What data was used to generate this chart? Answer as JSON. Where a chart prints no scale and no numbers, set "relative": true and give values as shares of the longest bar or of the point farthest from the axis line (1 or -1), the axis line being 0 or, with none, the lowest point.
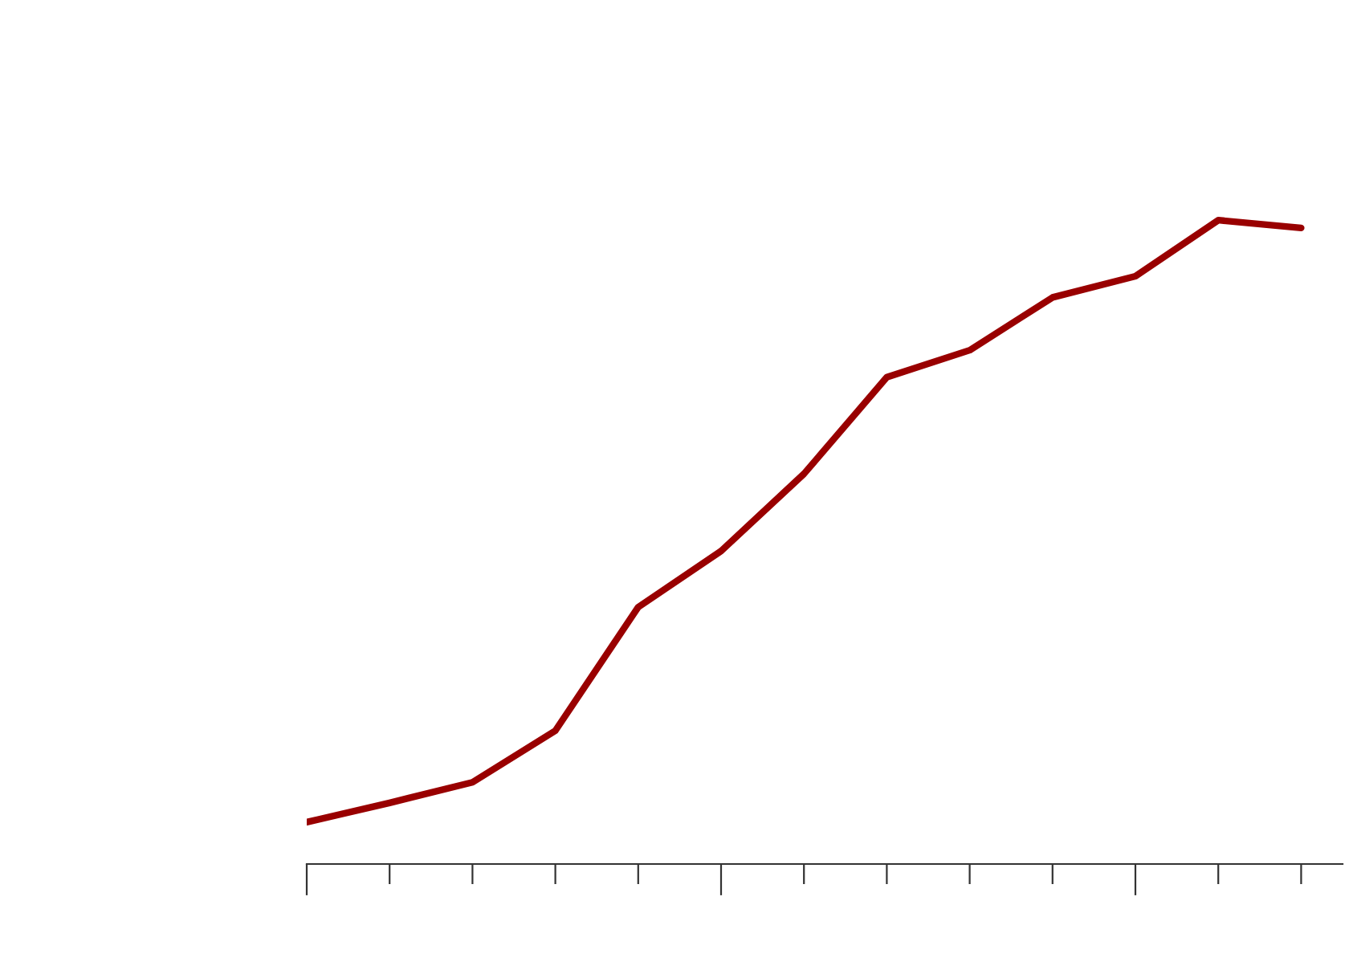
{
  "chart_data": {
    "type": "line",
    "relative": true,
    "categories": [
      null,
      null,
      null,
      null,
      null,
      null,
      null,
      null,
      null,
      null,
      null,
      null,
      null
    ],
    "series": [
      {
        "color": "#990000",
        "values": [
          0.065,
          0.095,
          0.127,
          0.207,
          0.399,
          0.486,
          0.606,
          0.756,
          0.798,
          0.88,
          0.913,
          1,
          0.988
        ]
      }
    ],
    "grid": false
  }
}
